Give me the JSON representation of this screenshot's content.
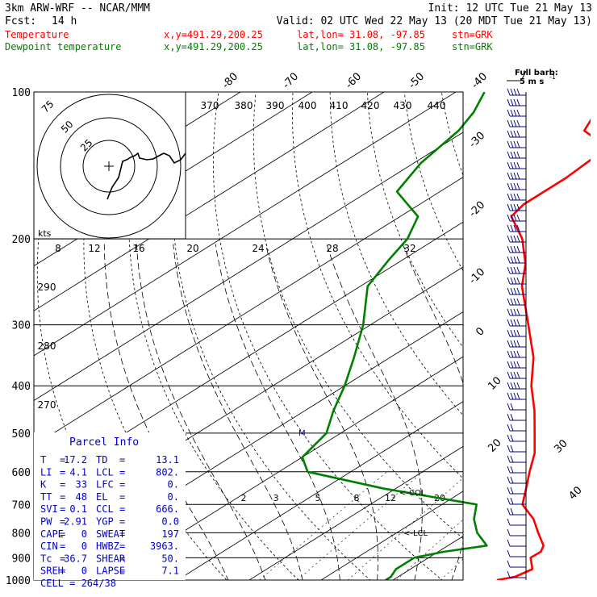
{
  "header": {
    "model": "3km ARW-WRF -- NCAR/MMM",
    "init": "Init: 12 UTC Tue 21 May 13",
    "fcst_label": "Fcst:",
    "fcst_value": "14 h",
    "valid": "Valid: 02 UTC Wed 22 May 13 (20 MDT Tue 21 May 13)",
    "temp_line": {
      "label": "Temperature",
      "xy": "x,y=491.29,200.25",
      "latlon": "lat,lon= 31.08, -97.85",
      "stn": "stn=GRK"
    },
    "dew_line": {
      "label": "Dewpoint temperature",
      "xy": "x,y=491.29,200.25",
      "latlon": "lat,lon= 31.08, -97.85",
      "stn": "stn=GRK"
    }
  },
  "colors": {
    "temperature": "#ff0000",
    "dewpoint": "#008000",
    "text_red": "#ff0000",
    "text_green": "#008000",
    "parcel": "#0000cc",
    "wind": "#000080"
  },
  "barb_key": {
    "line1": "Full barb:",
    "line2": "5 m s",
    "sup": "-1"
  },
  "hodograph": {
    "units": "kts",
    "ring_labels": [
      "75",
      "50",
      "25"
    ]
  },
  "chart_data": {
    "type": "line",
    "title": "",
    "y_axis": {
      "scale": "log",
      "labels": [
        "100",
        "200",
        "300",
        "400",
        "500",
        "600",
        "700",
        "800",
        "900",
        "1000"
      ]
    },
    "isotherm_labels_top": [
      "-80",
      "-70",
      "-60",
      "-50",
      "-40"
    ],
    "isotherm_labels_right": [
      "-30",
      "-20",
      "-10",
      "0",
      "10",
      "20",
      "30",
      "40"
    ],
    "theta_labels_top": [
      "370",
      "380",
      "390",
      "400",
      "410",
      "420",
      "430",
      "440"
    ],
    "theta_labels_left": [
      "290",
      "280",
      "270"
    ],
    "mixing_ratio_top": [
      "8",
      "12",
      "16",
      "20",
      "24",
      "28",
      "32"
    ],
    "mixing_ratio_lower": [
      "2",
      "3",
      "5",
      "8",
      "12",
      "20"
    ],
    "series": [
      {
        "name": "Temperature",
        "color": "#ff0000",
        "points": [
          [
            1000,
            24.5
          ],
          [
            985,
            26.3
          ],
          [
            950,
            27.0
          ],
          [
            900,
            24.2
          ],
          [
            875,
            24.3
          ],
          [
            850,
            23.3
          ],
          [
            800,
            19.7
          ],
          [
            750,
            16.0
          ],
          [
            700,
            11.2
          ],
          [
            650,
            8.2
          ],
          [
            600,
            4.9
          ],
          [
            550,
            1.5
          ],
          [
            500,
            -3.0
          ],
          [
            450,
            -8.0
          ],
          [
            400,
            -14.0
          ],
          [
            350,
            -20.0
          ],
          [
            300,
            -28.0
          ],
          [
            250,
            -37.5
          ],
          [
            225,
            -42.0
          ],
          [
            200,
            -48.0
          ],
          [
            180,
            -54.5
          ],
          [
            170,
            -55.5
          ],
          [
            150,
            -55.5
          ],
          [
            130,
            -56.5
          ],
          [
            120,
            -63.5
          ],
          [
            110,
            -66.0
          ],
          [
            100,
            -69.0
          ]
        ]
      },
      {
        "name": "Dewpoint temperature",
        "color": "#008000",
        "points": [
          [
            1000,
            9.0
          ],
          [
            985,
            9.0
          ],
          [
            950,
            8.0
          ],
          [
            900,
            8.0
          ],
          [
            875,
            10.8
          ],
          [
            850,
            15.4
          ],
          [
            800,
            11.2
          ],
          [
            750,
            7.7
          ],
          [
            700,
            4.8
          ],
          [
            650,
            -11.5
          ],
          [
            600,
            -26.0
          ],
          [
            560,
            -30.0
          ],
          [
            500,
            -32.0
          ],
          [
            450,
            -36.0
          ],
          [
            400,
            -40.0
          ],
          [
            350,
            -45.0
          ],
          [
            300,
            -51.0
          ],
          [
            250,
            -59.0
          ],
          [
            220,
            -62.0
          ],
          [
            200,
            -64.0
          ],
          [
            180,
            -67.5
          ],
          [
            160,
            -76.0
          ],
          [
            140,
            -79.0
          ],
          [
            120,
            -81.0
          ],
          [
            110,
            -83.0
          ],
          [
            100,
            -86.0
          ]
        ]
      }
    ],
    "parcel_info": {
      "title": "Parcel Info",
      "rows": [
        [
          [
            "T",
            "17.2"
          ],
          [
            "TD",
            "13.1"
          ]
        ],
        [
          [
            "LI",
            "4.1"
          ],
          [
            "LCL",
            "802."
          ]
        ],
        [
          [
            "K",
            "33"
          ],
          [
            "LFC",
            "0."
          ]
        ],
        [
          [
            "TT",
            "48"
          ],
          [
            "EL",
            "0."
          ]
        ],
        [
          [
            "SVI",
            "0.1"
          ],
          [
            "CCL",
            "666."
          ]
        ],
        [
          [
            "PW",
            "2.91"
          ],
          [
            "YGP",
            "0.0"
          ]
        ],
        [
          [
            "CAPE",
            "0"
          ],
          [
            "SWEAT",
            "197"
          ]
        ],
        [
          [
            "CIN",
            "0"
          ],
          [
            "HWBZ",
            "3963."
          ]
        ],
        [
          [
            "Tc",
            "36.7"
          ],
          [
            "SHEAR",
            "50."
          ]
        ],
        [
          [
            "SREH",
            "0"
          ],
          [
            "LAPSE",
            "7.1"
          ]
        ],
        [
          [
            "CELL",
            "264/38"
          ]
        ]
      ]
    },
    "annotations": {
      "m_marker": "M",
      "col": "<-COL",
      "lcl": "<-LCL"
    }
  }
}
